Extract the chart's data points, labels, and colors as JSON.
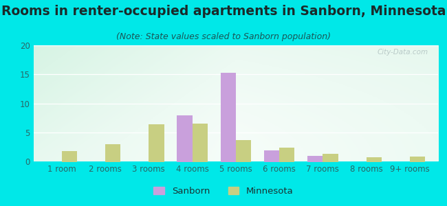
{
  "title": "Rooms in renter-occupied apartments in Sanborn, Minnesota",
  "subtitle": "(Note: State values scaled to Sanborn population)",
  "categories": [
    "1 room",
    "2 rooms",
    "3 rooms",
    "4 rooms",
    "5 rooms",
    "6 rooms",
    "7 rooms",
    "8 rooms",
    "9+ rooms"
  ],
  "sanborn_values": [
    0,
    0,
    0,
    8.0,
    15.3,
    2.0,
    1.0,
    0,
    0
  ],
  "minnesota_values": [
    1.8,
    3.0,
    6.4,
    6.6,
    3.7,
    2.4,
    1.3,
    0.8,
    0.9
  ],
  "sanborn_color": "#c9a0dc",
  "minnesota_color": "#c8cf82",
  "ylim": [
    0,
    20
  ],
  "yticks": [
    0,
    5,
    10,
    15,
    20
  ],
  "bar_width": 0.35,
  "bg_color": "#00e8e8",
  "title_fontsize": 13.5,
  "subtitle_fontsize": 9,
  "tick_fontsize": 8.5,
  "legend_fontsize": 9.5,
  "title_color": "#1a2a2a",
  "subtitle_color": "#1a5555",
  "tick_color": "#2a6666",
  "watermark": "City-Data.com"
}
